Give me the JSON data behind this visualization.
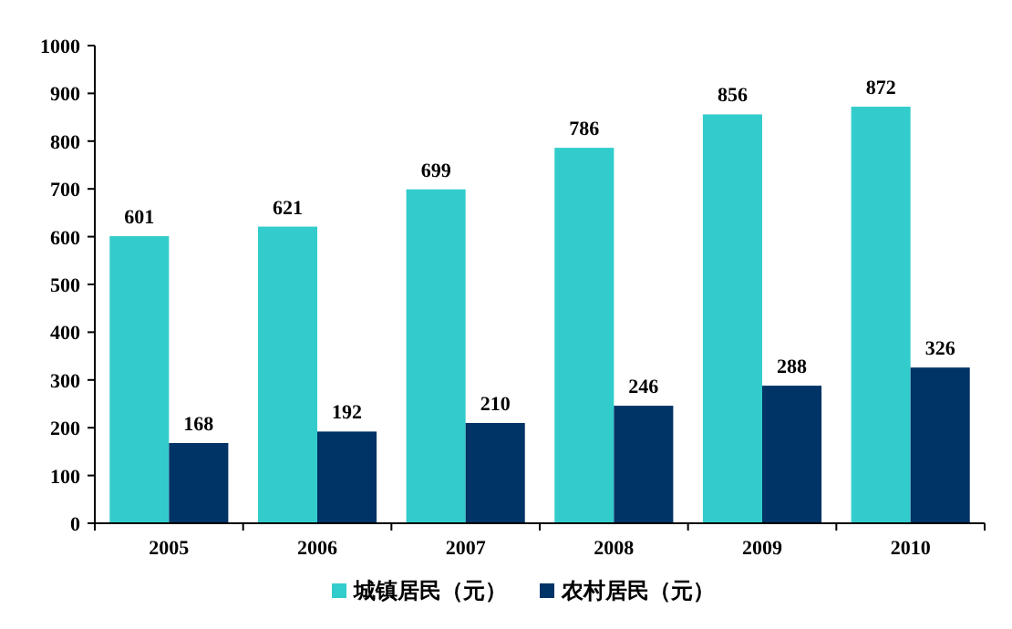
{
  "chart_data": {
    "type": "bar",
    "categories": [
      "2005",
      "2006",
      "2007",
      "2008",
      "2009",
      "2010"
    ],
    "series": [
      {
        "name": "城镇居民（元）",
        "color": "#33cccc",
        "values": [
          601,
          621,
          699,
          786,
          856,
          872
        ]
      },
      {
        "name": "农村居民（元）",
        "color": "#003366",
        "values": [
          168,
          192,
          210,
          246,
          288,
          326
        ]
      }
    ],
    "ylim": [
      0,
      1000
    ],
    "yticks": [
      0,
      100,
      200,
      300,
      400,
      500,
      600,
      700,
      800,
      900,
      1000
    ],
    "data_labels": true,
    "legend": "bottom",
    "grid": false
  }
}
